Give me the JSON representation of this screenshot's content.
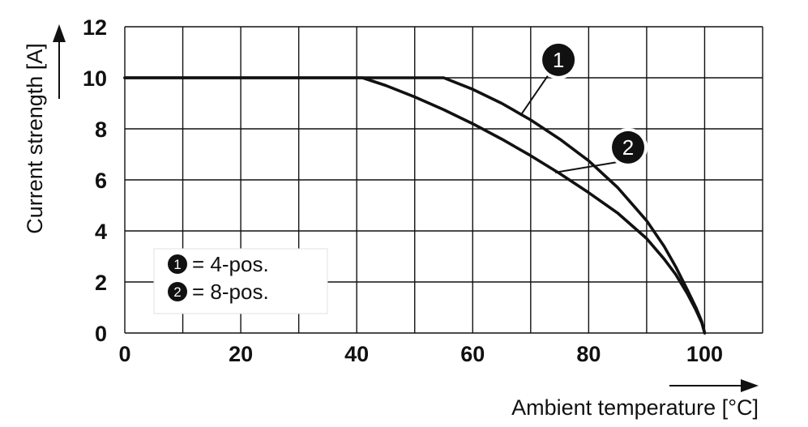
{
  "chart_data": {
    "type": "line",
    "xlabel": "Ambient temperature [°C]",
    "ylabel": "Current strength [A]",
    "xlim": [
      0,
      110
    ],
    "ylim": [
      0,
      12
    ],
    "xticks": [
      0,
      20,
      40,
      60,
      80,
      100
    ],
    "yticks": [
      0,
      2,
      4,
      6,
      8,
      10,
      12
    ],
    "x_grid_step": 10,
    "y_grid_step": 2,
    "grid": true,
    "legend_position": "bottom-left",
    "series": [
      {
        "name": "1",
        "legend_label": "= 4-pos.",
        "x": [
          0,
          55,
          60,
          65,
          70,
          75,
          80,
          85,
          90,
          93,
          95,
          97,
          98.5,
          99.5,
          100
        ],
        "y": [
          10,
          10,
          9.55,
          9.0,
          8.35,
          7.6,
          6.75,
          5.7,
          4.4,
          3.4,
          2.6,
          1.7,
          1.0,
          0.45,
          0
        ]
      },
      {
        "name": "2",
        "legend_label": "= 8-pos.",
        "x": [
          0,
          41,
          45,
          50,
          55,
          60,
          65,
          70,
          75,
          80,
          85,
          90,
          93,
          95,
          97,
          98.5,
          99.5,
          100
        ],
        "y": [
          10,
          10,
          9.7,
          9.25,
          8.75,
          8.2,
          7.6,
          6.95,
          6.25,
          5.5,
          4.7,
          3.7,
          2.9,
          2.3,
          1.55,
          0.9,
          0.4,
          0
        ]
      }
    ],
    "callouts": [
      {
        "label": "1",
        "series": 0,
        "at_x": 68.5
      },
      {
        "label": "2",
        "series": 1,
        "at_x": 74.5
      }
    ]
  }
}
